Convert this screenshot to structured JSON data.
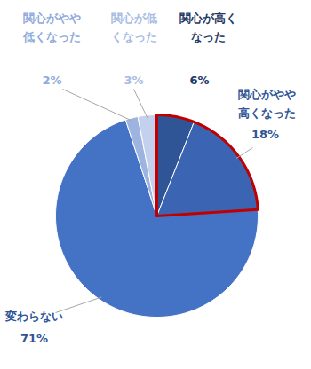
{
  "chart_data": {
    "type": "pie",
    "categories": [
      "関心が高く\nなった",
      "関心がやや\n高くなった",
      "変わらない",
      "関心がやや\n低くなった",
      "関心が低\nくなった"
    ],
    "values": [
      6,
      18,
      71,
      2,
      3
    ],
    "value_labels": [
      "6%",
      "18%",
      "71%",
      "2%",
      "3%"
    ],
    "colors": [
      "#2f5597",
      "#3b64b3",
      "#4472c4",
      "#9db3e0",
      "#c3d1ee"
    ],
    "data_labels": true
  }
}
